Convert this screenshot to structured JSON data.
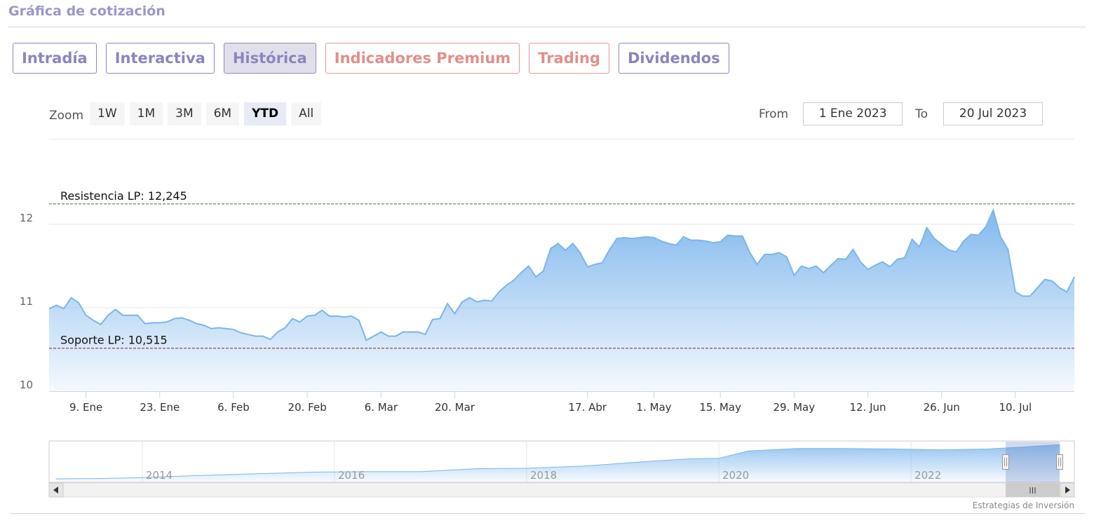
{
  "header": {
    "title": "Gráfica de cotización"
  },
  "tabs": [
    "Intradía",
    "Interactiva",
    "Histórica",
    "Indicadores Premium",
    "Trading",
    "Dividendos"
  ],
  "active_tab": 2,
  "warm_tabs": [
    3,
    4
  ],
  "range_selector": {
    "zoom_label": "Zoom",
    "buttons": [
      "1W",
      "1M",
      "3M",
      "6M",
      "YTD",
      "All"
    ],
    "selected": 4,
    "from_label": "From",
    "from": "1 Ene 2023",
    "to_label": "To",
    "to": "20 Jul 2023"
  },
  "chart_data": {
    "type": "area",
    "color": "#7cb5ec",
    "values": [
      10.99,
      11.03,
      10.99,
      11.12,
      11.06,
      10.91,
      10.85,
      10.8,
      10.91,
      10.98,
      10.91,
      10.91,
      10.91,
      10.81,
      10.82,
      10.82,
      10.83,
      10.87,
      10.88,
      10.85,
      10.81,
      10.79,
      10.75,
      10.76,
      10.75,
      10.74,
      10.7,
      10.68,
      10.66,
      10.66,
      10.62,
      10.71,
      10.76,
      10.87,
      10.83,
      10.9,
      10.91,
      10.97,
      10.9,
      10.9,
      10.89,
      10.9,
      10.85,
      10.61,
      10.66,
      10.71,
      10.66,
      10.66,
      10.71,
      10.71,
      10.71,
      10.68,
      10.86,
      10.87,
      11.05,
      10.93,
      11.07,
      11.12,
      11.07,
      11.09,
      11.08,
      11.19,
      11.27,
      11.33,
      11.42,
      11.5,
      11.37,
      11.44,
      11.71,
      11.77,
      11.69,
      11.77,
      11.66,
      11.49,
      11.52,
      11.54,
      11.7,
      11.83,
      11.84,
      11.83,
      11.84,
      11.85,
      11.84,
      11.8,
      11.77,
      11.75,
      11.85,
      11.81,
      11.81,
      11.8,
      11.78,
      11.79,
      11.87,
      11.86,
      11.86,
      11.66,
      11.52,
      11.64,
      11.64,
      11.66,
      11.61,
      11.39,
      11.5,
      11.47,
      11.5,
      11.42,
      11.51,
      11.59,
      11.58,
      11.7,
      11.55,
      11.46,
      11.51,
      11.55,
      11.49,
      11.58,
      11.6,
      11.82,
      11.73,
      11.96,
      11.83,
      11.76,
      11.69,
      11.67,
      11.8,
      11.88,
      11.87,
      11.97,
      12.17,
      11.85,
      11.7,
      11.19,
      11.14,
      11.14,
      11.24,
      11.34,
      11.32,
      11.24,
      11.19,
      11.37
    ],
    "xlim": [
      0,
      139
    ],
    "xticks": [
      {
        "value": 5,
        "label": "9. Ene"
      },
      {
        "value": 15,
        "label": "23. Ene"
      },
      {
        "value": 25,
        "label": "6. Feb"
      },
      {
        "value": 35,
        "label": "20. Feb"
      },
      {
        "value": 45,
        "label": "6. Mar"
      },
      {
        "value": 55,
        "label": "20. Mar"
      },
      {
        "value": 73,
        "label": "17. Abr"
      },
      {
        "value": 82,
        "label": "1. May"
      },
      {
        "value": 91,
        "label": "15. May"
      },
      {
        "value": 101,
        "label": "29. May"
      },
      {
        "value": 111,
        "label": "12. Jun"
      },
      {
        "value": 121,
        "label": "26. Jun"
      },
      {
        "value": 131,
        "label": "10. Jul"
      }
    ],
    "ylim": [
      10,
      13.025
    ],
    "yticks": [
      10,
      11,
      12
    ],
    "grid": true,
    "plot_lines": [
      {
        "label": "Resistencia LP: 12,245",
        "value": 12.245,
        "color": "#2a7a2a"
      },
      {
        "label": "Soporte LP: 10,515",
        "value": 10.515,
        "color": "#8b1d33"
      }
    ]
  },
  "navigator": {
    "type": "area",
    "color": "#7cb5ec",
    "x": [
      2013.1,
      2013.6,
      2014.0,
      2014.6,
      2015.2,
      2015.8,
      2016.3,
      2016.9,
      2017.5,
      2018.0,
      2018.6,
      2019.2,
      2019.7,
      2020.0,
      2020.3,
      2020.8,
      2021.3,
      2021.8,
      2022.3,
      2022.8,
      2023.2,
      2023.55
    ],
    "values": [
      3.8,
      3.9,
      4.1,
      4.6,
      5.0,
      5.4,
      5.5,
      5.5,
      6.2,
      6.3,
      6.8,
      7.8,
      8.5,
      8.6,
      10.3,
      10.9,
      10.9,
      10.8,
      10.6,
      10.8,
      11.3,
      11.8
    ],
    "xlim": [
      2013.03,
      2023.7
    ],
    "xticks": [
      2014,
      2016,
      2018,
      2020,
      2022
    ],
    "ylim": [
      3,
      12.5
    ]
  },
  "credit": "Estrategias de Inversión"
}
